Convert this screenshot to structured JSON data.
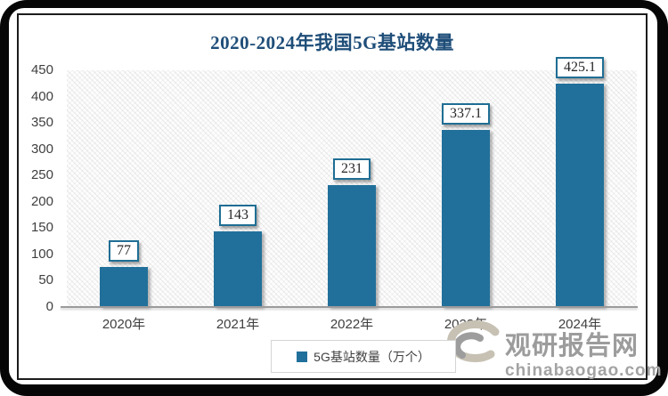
{
  "title": {
    "text": "2020-2024年我国5G基站数量",
    "color": "#1f4e79"
  },
  "chart_data": {
    "type": "bar",
    "title": "2020-2024年我国5G基站数量",
    "categories": [
      "2020年",
      "2021年",
      "2022年",
      "2023年",
      "2024年"
    ],
    "series": [
      {
        "name": "5G基站数量（万个）",
        "values": [
          77,
          143,
          231,
          337.1,
          425.1
        ]
      }
    ],
    "value_labels": [
      "77",
      "143",
      "231",
      "337.1",
      "425.1"
    ],
    "ylim": [
      0,
      450
    ],
    "ytick_step": 50,
    "grid": false,
    "legend_position": "bottom",
    "plot_background": "diagonal-hatch",
    "bar_color": "#21709b"
  },
  "legend": {
    "label": "5G基站数量（万个）",
    "marker_color": "#21709b"
  },
  "watermark": {
    "brand": "观研报告网",
    "url": "chinabaogao.com"
  },
  "colors": {
    "bar": "#21709b",
    "title": "#1f4e79",
    "axis_text": "#3f3f3f",
    "axis_line": "#9b9b9b",
    "label_box_border": "#1f6e94",
    "frame": "#060606"
  }
}
